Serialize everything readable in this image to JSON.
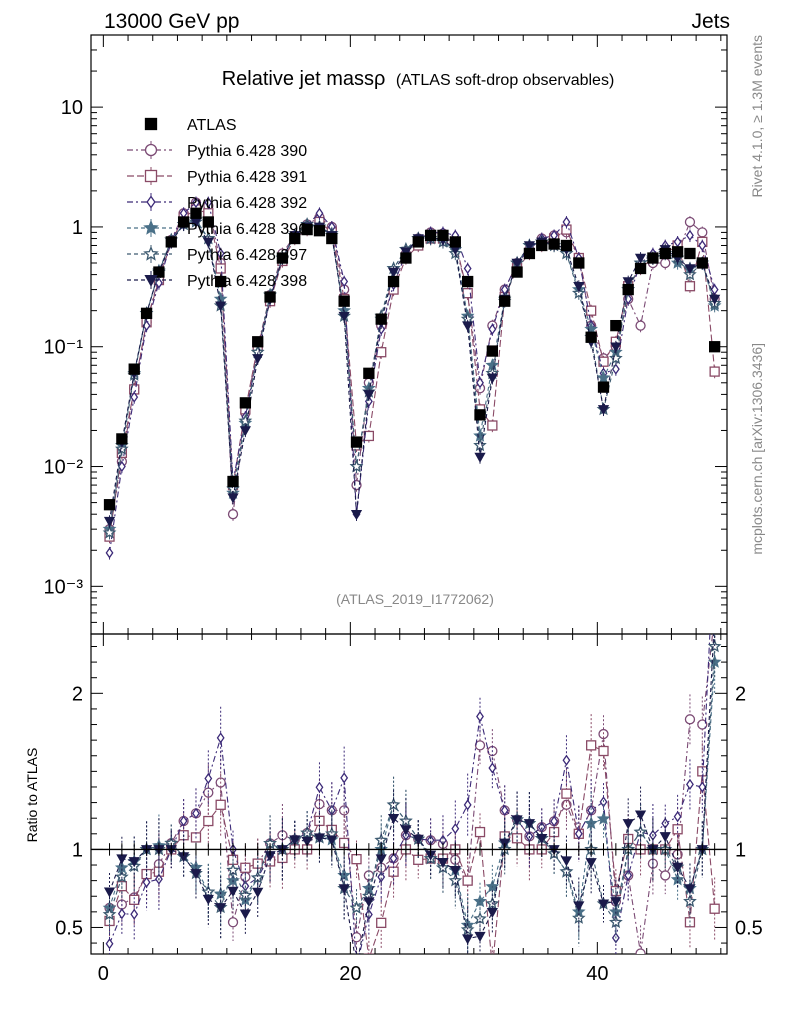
{
  "header": {
    "left": "13000 GeV pp",
    "right": "Jets"
  },
  "side_text": {
    "rivet": "Rivet 4.1.0, ≥ 1.3M events",
    "mcplots": "mcplots.cern.ch [arXiv:1306.3436]"
  },
  "analysis_label": "(ATLAS_2019_I1772062)",
  "chart_data": {
    "type": "scatter",
    "title": "Relative jet massρ",
    "subtitle": "(ATLAS soft-drop observables)",
    "upper_panel": {
      "ylabel": "",
      "yscale": "log",
      "ylim": [
        0.0004,
        40
      ],
      "ytick_values": [
        0.001,
        0.01,
        0.1,
        1,
        10
      ],
      "ytick_labels": [
        "10⁻³",
        "10⁻²",
        "10⁻¹",
        "1",
        "10"
      ]
    },
    "ratio_panel": {
      "ylabel": "Ratio to ATLAS",
      "ylim": [
        0.33,
        2.38
      ],
      "ytick_values": [
        0.5,
        1,
        2
      ],
      "ytick_labels": [
        "0.5",
        "1",
        "2"
      ]
    },
    "xlim": [
      -1,
      50.5
    ],
    "xtick_values": [
      0,
      20,
      40
    ],
    "xtick_labels": [
      "0",
      "20",
      "40"
    ],
    "legend_position": "top-left",
    "series": [
      {
        "name": "ATLAS",
        "marker": "square-filled",
        "color": "#000000",
        "x": [
          0.5,
          1.5,
          2.5,
          3.5,
          4.5,
          5.5,
          6.5,
          7.5,
          8.5,
          9.5,
          10.5,
          11.5,
          12.5,
          13.5,
          14.5,
          15.5,
          16.5,
          17.5,
          18.5,
          19.5,
          20.5,
          21.5,
          22.5,
          23.5,
          24.5,
          25.5,
          26.5,
          27.5,
          28.5,
          29.5,
          30.5,
          31.5,
          32.5,
          33.5,
          34.5,
          35.5,
          36.5,
          37.5,
          38.5,
          39.5,
          40.5,
          41.5,
          42.5,
          43.5,
          44.5,
          45.5,
          46.5,
          47.5,
          48.5,
          49.5
        ],
        "y": [
          0.0048,
          0.017,
          0.065,
          0.19,
          0.42,
          0.75,
          1.1,
          1.3,
          1.1,
          0.35,
          0.0075,
          0.034,
          0.11,
          0.26,
          0.55,
          0.8,
          0.95,
          0.93,
          0.8,
          0.24,
          0.016,
          0.06,
          0.17,
          0.35,
          0.55,
          0.75,
          0.85,
          0.85,
          0.75,
          0.35,
          0.027,
          0.092,
          0.24,
          0.42,
          0.6,
          0.7,
          0.72,
          0.7,
          0.5,
          0.12,
          0.046,
          0.15,
          0.3,
          0.45,
          0.55,
          0.6,
          0.62,
          0.6,
          0.5,
          0.1
        ]
      },
      {
        "name": "Pythia 6.428 390",
        "marker": "circle-open",
        "color": "#7b4a74",
        "dash": "6,3,2,3",
        "y": [
          0.003,
          0.011,
          0.045,
          0.16,
          0.38,
          0.78,
          1.3,
          1.6,
          1.5,
          0.5,
          0.004,
          0.028,
          0.1,
          0.27,
          0.6,
          0.85,
          1.05,
          1.2,
          1.0,
          0.3,
          0.007,
          0.05,
          0.15,
          0.33,
          0.6,
          0.8,
          0.9,
          0.88,
          0.7,
          0.28,
          0.045,
          0.15,
          0.3,
          0.5,
          0.65,
          0.8,
          0.85,
          0.9,
          0.55,
          0.15,
          0.08,
          0.1,
          0.25,
          0.15,
          0.5,
          0.5,
          0.6,
          1.1,
          0.9,
          0.25
        ]
      },
      {
        "name": "Pythia 6.428 391",
        "marker": "square-open",
        "color": "#8a4a66",
        "dash": "7,3",
        "y": [
          0.0026,
          0.013,
          0.044,
          0.16,
          0.36,
          0.75,
          1.2,
          1.4,
          1.3,
          0.45,
          0.007,
          0.03,
          0.1,
          0.24,
          0.52,
          0.8,
          0.95,
          1.1,
          0.9,
          0.25,
          0.015,
          0.018,
          0.09,
          0.3,
          0.55,
          0.7,
          0.8,
          0.8,
          0.75,
          0.28,
          0.03,
          0.022,
          0.26,
          0.45,
          0.6,
          0.7,
          0.8,
          0.95,
          0.55,
          0.2,
          0.075,
          0.11,
          0.32,
          0.45,
          0.55,
          0.6,
          0.7,
          0.32,
          0.75,
          0.062
        ]
      },
      {
        "name": "Pythia 6.428 392",
        "marker": "diamond-open",
        "color": "#3c2a78",
        "dash": "6,3,2,3",
        "y": [
          0.0019,
          0.01,
          0.038,
          0.15,
          0.34,
          0.75,
          1.3,
          1.6,
          1.6,
          0.6,
          0.0075,
          0.026,
          0.09,
          0.25,
          0.55,
          0.85,
          1.05,
          1.3,
          1.0,
          0.35,
          0.004,
          0.035,
          0.14,
          0.33,
          0.6,
          0.8,
          0.9,
          0.9,
          0.85,
          0.45,
          0.05,
          0.14,
          0.3,
          0.5,
          0.65,
          0.8,
          0.85,
          1.1,
          0.55,
          0.15,
          0.06,
          0.065,
          0.25,
          0.5,
          0.6,
          0.7,
          0.75,
          0.85,
          0.7,
          0.3
        ]
      },
      {
        "name": "Pythia 6.428 396",
        "marker": "star-filled",
        "color": "#4a7088",
        "dash": "4,3",
        "y": [
          0.003,
          0.015,
          0.06,
          0.19,
          0.43,
          0.78,
          1.05,
          1.15,
          0.8,
          0.25,
          0.006,
          0.023,
          0.09,
          0.27,
          0.55,
          0.85,
          1.05,
          1.0,
          0.85,
          0.2,
          0.01,
          0.045,
          0.17,
          0.45,
          0.65,
          0.8,
          0.8,
          0.75,
          0.65,
          0.18,
          0.018,
          0.07,
          0.25,
          0.5,
          0.7,
          0.75,
          0.7,
          0.6,
          0.3,
          0.14,
          0.055,
          0.09,
          0.3,
          0.5,
          0.55,
          0.6,
          0.5,
          0.45,
          0.5,
          0.22
        ]
      },
      {
        "name": "Pythia 6.428 397",
        "marker": "star-open",
        "color": "#3d5a70",
        "dash": "4,3",
        "y": [
          0.0028,
          0.014,
          0.058,
          0.19,
          0.42,
          0.78,
          1.05,
          1.1,
          0.8,
          0.22,
          0.0065,
          0.024,
          0.09,
          0.27,
          0.55,
          0.85,
          1.05,
          1.0,
          0.88,
          0.18,
          0.01,
          0.042,
          0.18,
          0.45,
          0.65,
          0.8,
          0.8,
          0.75,
          0.6,
          0.17,
          0.015,
          0.06,
          0.24,
          0.5,
          0.7,
          0.75,
          0.7,
          0.6,
          0.28,
          0.12,
          0.03,
          0.08,
          0.3,
          0.5,
          0.55,
          0.6,
          0.55,
          0.4,
          0.5,
          0.23
        ]
      },
      {
        "name": "Pythia 6.428 398",
        "marker": "triangle-down-filled",
        "color": "#1a1a4a",
        "dash": "4,3",
        "y": [
          0.0035,
          0.016,
          0.06,
          0.19,
          0.42,
          0.75,
          1.05,
          1.1,
          0.75,
          0.22,
          0.0055,
          0.02,
          0.08,
          0.25,
          0.55,
          0.85,
          1.0,
          1.0,
          0.85,
          0.18,
          0.004,
          0.04,
          0.16,
          0.42,
          0.62,
          0.8,
          0.82,
          0.78,
          0.65,
          0.15,
          0.012,
          0.055,
          0.25,
          0.5,
          0.7,
          0.75,
          0.72,
          0.65,
          0.32,
          0.11,
          0.03,
          0.1,
          0.35,
          0.55,
          0.55,
          0.65,
          0.55,
          0.45,
          0.5,
          0.25
        ]
      }
    ]
  }
}
